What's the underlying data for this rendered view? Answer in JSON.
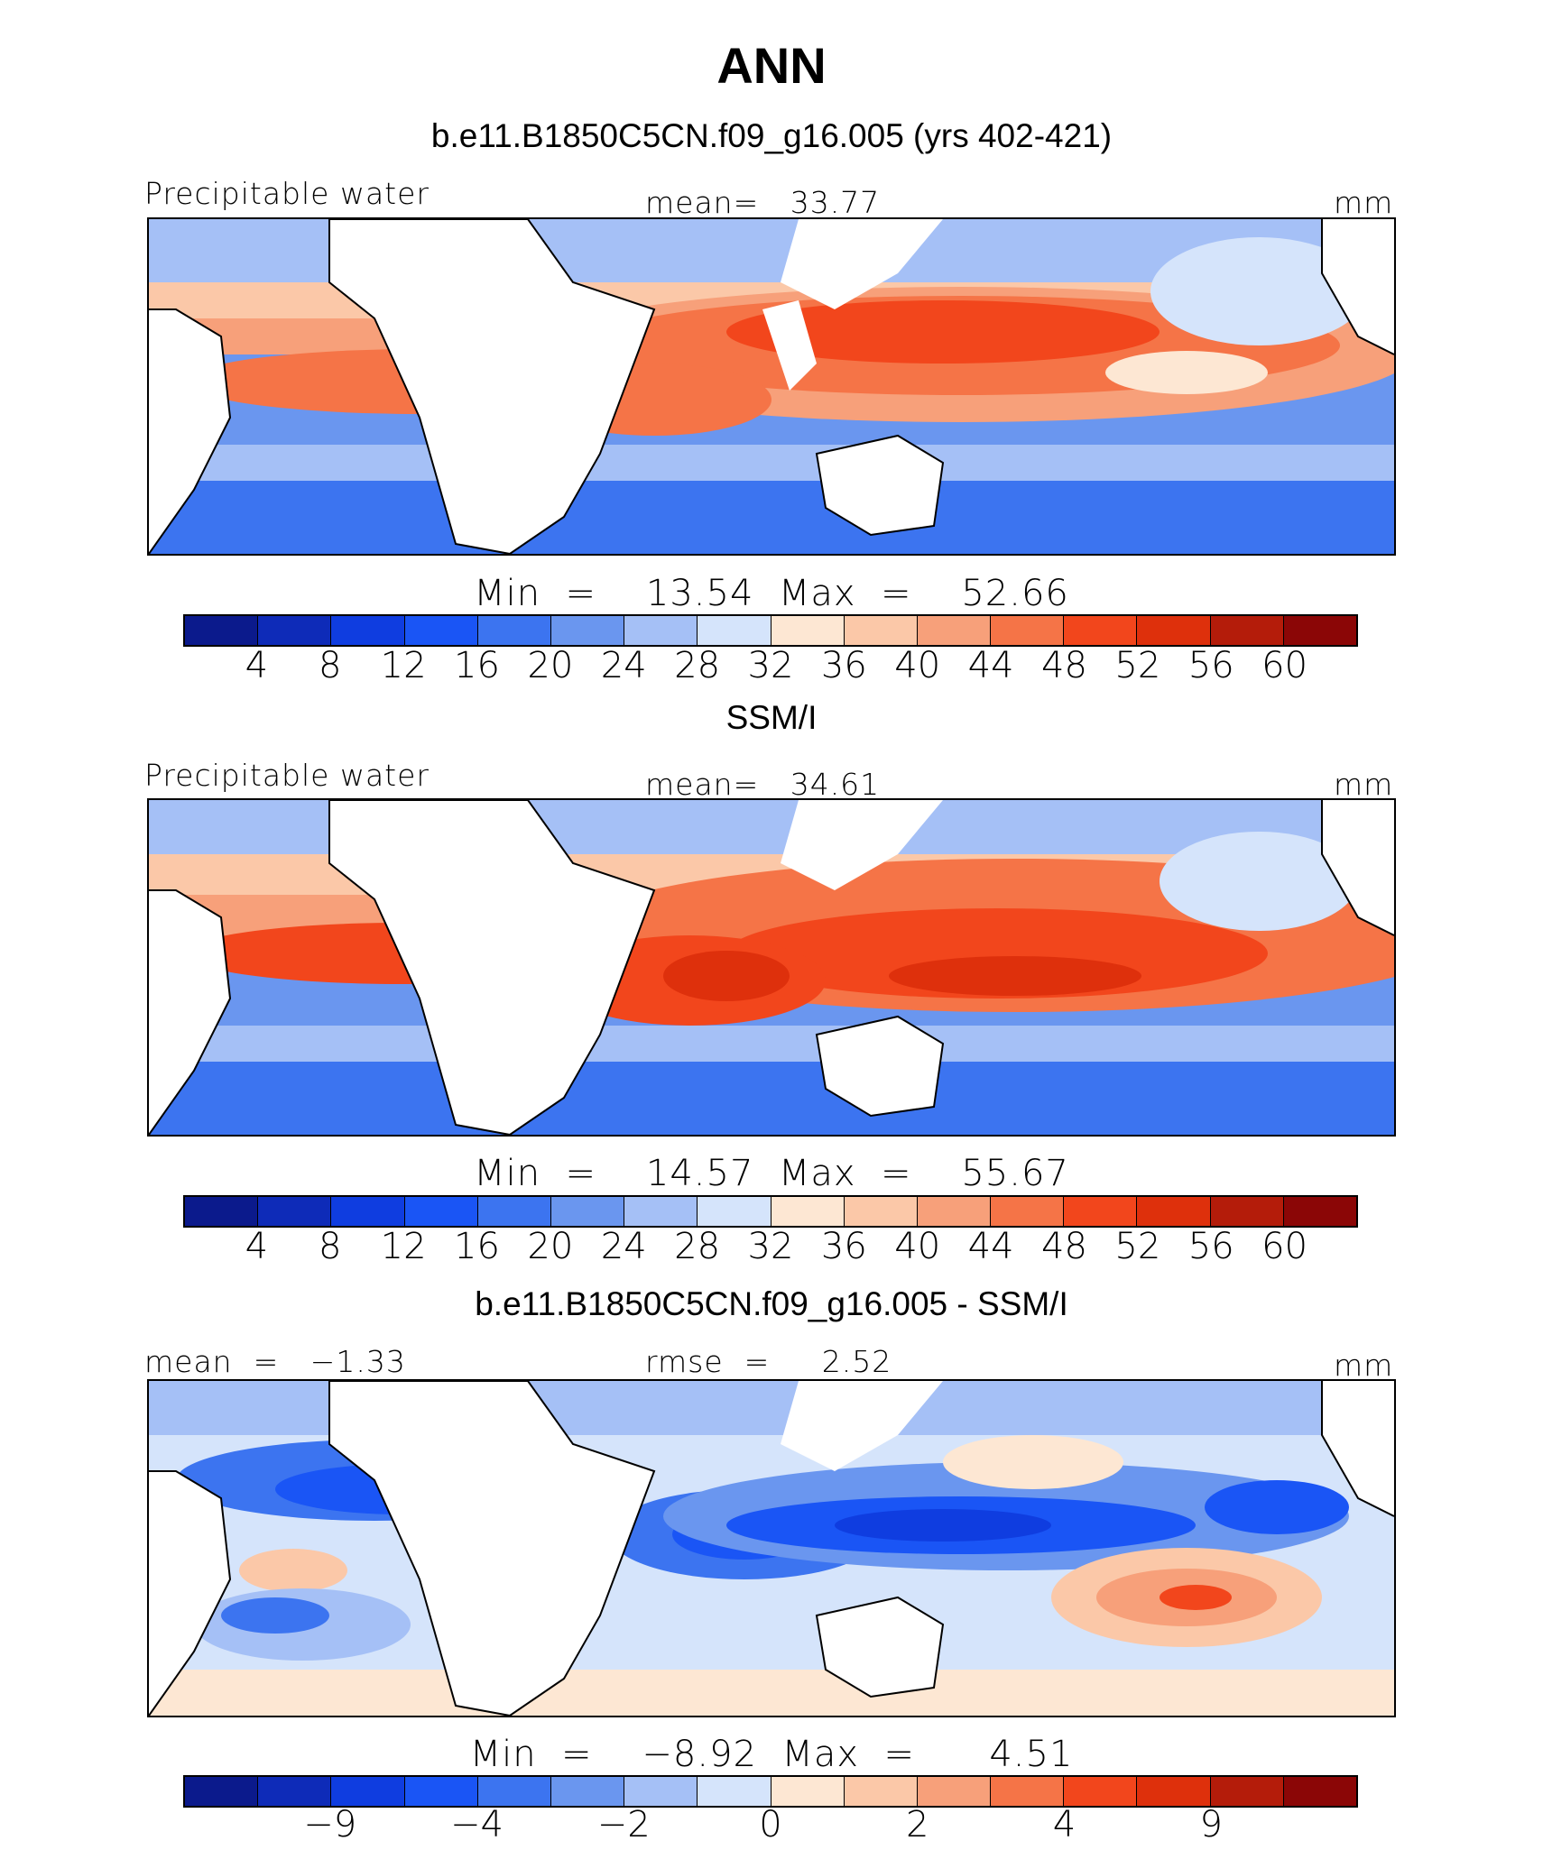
{
  "title": "ANN",
  "colors_abs": [
    "#0b1a8c",
    "#0e2bb8",
    "#0f3de0",
    "#1a55f5",
    "#3c74f0",
    "#6a96ef",
    "#a5c0f6",
    "#d5e4fb",
    "#fde7d3",
    "#fbc8a8",
    "#f7a07a",
    "#f57447",
    "#f2461c",
    "#de300c",
    "#b41c0a",
    "#8b0606"
  ],
  "colors_diff": [
    "#0b1a8c",
    "#0e2bb8",
    "#0f3de0",
    "#1a55f5",
    "#3c74f0",
    "#6a96ef",
    "#a5c0f6",
    "#d5e4fb",
    "#fde7d3",
    "#fbc8a8",
    "#f7a07a",
    "#f57447",
    "#f2461c",
    "#de300c",
    "#b41c0a",
    "#8b0606"
  ],
  "panels": [
    {
      "title": "b.e11.B1850C5CN.f09_g16.005 (yrs 402-421)",
      "left_label": "Precipitable water",
      "center_label": "mean=   33.77",
      "units": "mm",
      "minmax": "Min  =    13.54  Max  =    52.66",
      "ticks": [
        "4",
        "8",
        "12",
        "16",
        "20",
        "24",
        "28",
        "32",
        "36",
        "40",
        "44",
        "48",
        "52",
        "56",
        "60"
      ]
    },
    {
      "title": "SSM/I",
      "left_label": "Precipitable water",
      "center_label": "mean=   34.61",
      "units": "mm",
      "minmax": "Min  =    14.57  Max  =    55.67",
      "ticks": [
        "4",
        "8",
        "12",
        "16",
        "20",
        "24",
        "28",
        "32",
        "36",
        "40",
        "44",
        "48",
        "52",
        "56",
        "60"
      ]
    },
    {
      "title": "b.e11.B1850C5CN.f09_g16.005 - SSM/I",
      "left_label": "mean  =   −1.33",
      "center_label": "rmse  =     2.52",
      "units": "mm",
      "minmax": "Min  =    −8.92  Max  =      4.51",
      "ticks": [
        "−9",
        "",
        "−4",
        "",
        "−2",
        "",
        "0",
        "",
        "2",
        "",
        "4",
        "",
        "9"
      ]
    }
  ],
  "chart_data": [
    {
      "type": "heatmap",
      "title": "b.e11.B1850C5CN.f09_g16.005 (yrs 402-421)",
      "variable": "Precipitable water",
      "units": "mm",
      "mean": 33.77,
      "min": 13.54,
      "max": 52.66,
      "contour_levels": [
        4,
        8,
        12,
        16,
        20,
        24,
        28,
        32,
        36,
        40,
        44,
        48,
        52,
        56,
        60
      ]
    },
    {
      "type": "heatmap",
      "title": "SSM/I",
      "variable": "Precipitable water",
      "units": "mm",
      "mean": 34.61,
      "min": 14.57,
      "max": 55.67,
      "contour_levels": [
        4,
        8,
        12,
        16,
        20,
        24,
        28,
        32,
        36,
        40,
        44,
        48,
        52,
        56,
        60
      ]
    },
    {
      "type": "heatmap",
      "title": "b.e11.B1850C5CN.f09_g16.005 - SSM/I",
      "units": "mm",
      "mean": -1.33,
      "rmse": 2.52,
      "min": -8.92,
      "max": 4.51,
      "contour_levels": [
        -9,
        -4,
        -2,
        0,
        2,
        4,
        9
      ]
    }
  ]
}
